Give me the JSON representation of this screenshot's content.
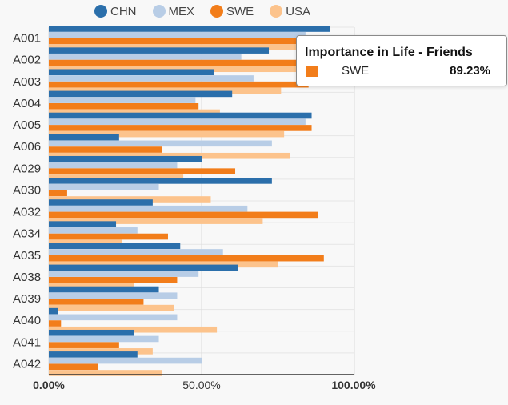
{
  "chart_data": {
    "type": "bar",
    "orientation": "horizontal",
    "categories": [
      "A001",
      "A002",
      "A003",
      "A004",
      "A005",
      "A006",
      "A029",
      "A030",
      "A032",
      "A034",
      "A035",
      "A038",
      "A039",
      "A040",
      "A041",
      "A042"
    ],
    "series": [
      {
        "name": "CHN",
        "color": "#2b6fab",
        "values": [
          92,
          72,
          54,
          60,
          86,
          23,
          50,
          73,
          34,
          22,
          43,
          62,
          36,
          3,
          28,
          29
        ]
      },
      {
        "name": "MEX",
        "color": "#b8cde6",
        "values": [
          84,
          63,
          67,
          48,
          84,
          73,
          42,
          36,
          65,
          29,
          57,
          49,
          42,
          42,
          36,
          50
        ]
      },
      {
        "name": "SWE",
        "color": "#f27d1a",
        "values": [
          89,
          89.23,
          85,
          49,
          86,
          37,
          61,
          6,
          88,
          39,
          90,
          42,
          31,
          4,
          23,
          16
        ]
      },
      {
        "name": "USA",
        "color": "#fcc38c",
        "values": [
          96,
          88,
          76,
          56,
          77,
          79,
          44,
          53,
          70,
          24,
          75,
          28,
          41,
          55,
          34,
          37
        ]
      }
    ],
    "xlim": [
      0,
      100
    ],
    "xticks": [
      "0.00%",
      "50.00%",
      "100.00%"
    ],
    "grid": true,
    "legend_position": "top"
  },
  "tooltip": {
    "title": "Importance in Life - Friends",
    "series": "SWE",
    "value": "89.23%"
  }
}
